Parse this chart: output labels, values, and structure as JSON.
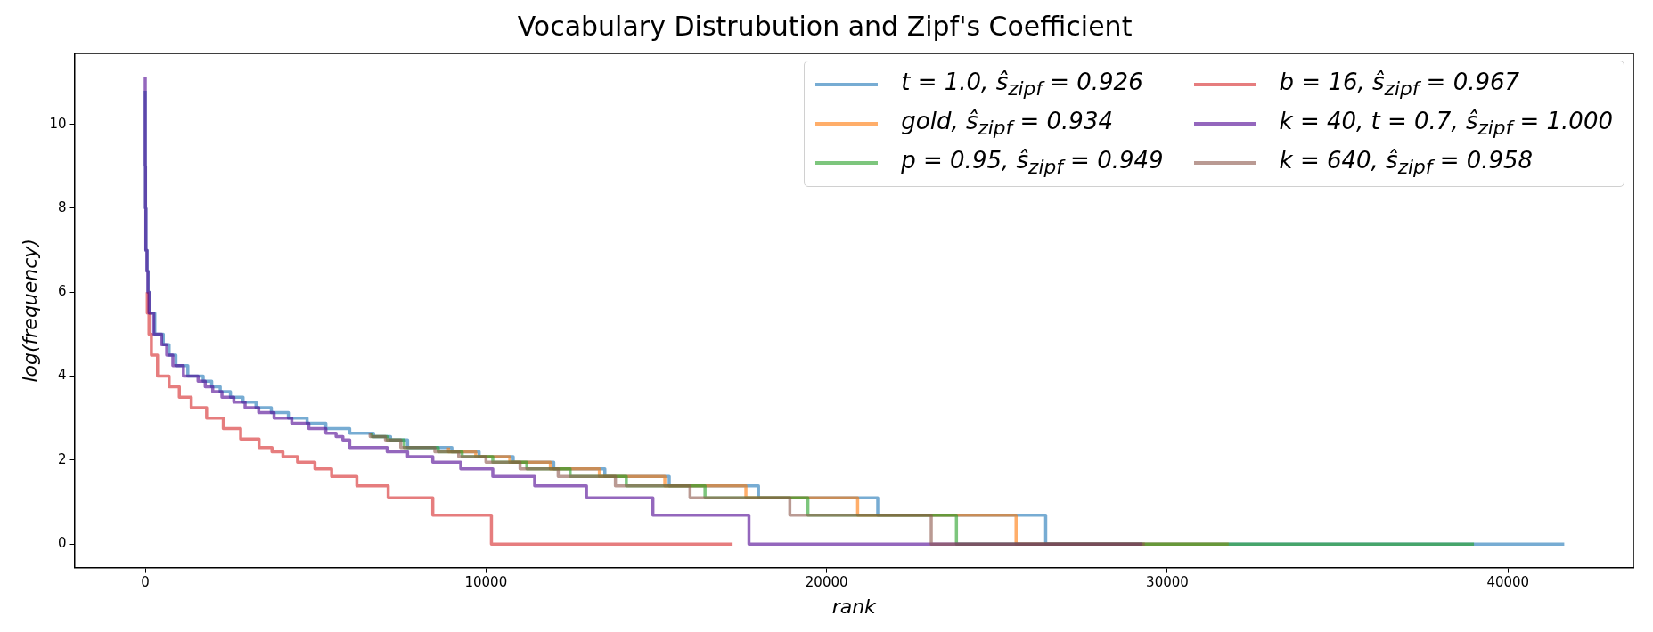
{
  "chart_data": {
    "type": "step",
    "title": "Vocabulary Distrubution and Zipf's Coefficient",
    "xlabel": "rank",
    "ylabel": "log(frequency)",
    "xlim": [
      -2080,
      43680
    ],
    "ylim": [
      -0.56,
      11.69
    ],
    "xticks": [
      0,
      10000,
      20000,
      30000,
      40000
    ],
    "yticks": [
      0,
      2,
      4,
      6,
      8,
      10
    ],
    "grid": false,
    "legend": "top right",
    "marker": "none",
    "line_style": "solid",
    "series": [
      {
        "name": "t = 1.0, ŝ$_{zipf}$ = 0.926",
        "color": "#77acd3",
        "x": [
          0,
          8,
          20,
          55,
          85,
          120,
          280,
          530,
          700,
          900,
          1250,
          1700,
          1950,
          2200,
          2500,
          2870,
          3250,
          3700,
          4200,
          4750,
          5300,
          6000,
          6700,
          7200,
          7700,
          9000,
          9800,
          10800,
          11990,
          13490,
          15380,
          18000,
          21500,
          26430,
          33150,
          41650
        ],
        "values": [
          10.8,
          9,
          8,
          7,
          6.5,
          6,
          5.5,
          5,
          4.75,
          4.5,
          4.25,
          4,
          3.88,
          3.75,
          3.63,
          3.5,
          3.38,
          3.25,
          3.13,
          3,
          2.88,
          2.75,
          2.64,
          2.56,
          2.48,
          2.3,
          2.2,
          2.08,
          1.95,
          1.79,
          1.61,
          1.39,
          1.1,
          0.69,
          0,
          0
        ]
      },
      {
        "name": "gold, ŝ$_{zipf}$ = 0.934",
        "color": "#ffae6a",
        "x": [
          8900,
          9700,
          10700,
          11890,
          13330,
          15250,
          17630,
          20910,
          25560,
          31800
        ],
        "values": [
          2.3,
          2.2,
          2.08,
          1.95,
          1.79,
          1.61,
          1.39,
          1.1,
          0.69,
          0
        ]
      },
      {
        "name": "p = 0.95, ŝ$_{zipf}$ = 0.949",
        "color": "#7dc67d",
        "x": [
          6650,
          7100,
          7600,
          8600,
          9300,
          10200,
          11200,
          12470,
          14120,
          16430,
          19450,
          23810,
          30130,
          39000
        ],
        "values": [
          2.64,
          2.56,
          2.48,
          2.3,
          2.2,
          2.08,
          1.95,
          1.79,
          1.61,
          1.39,
          1.1,
          0.69,
          0,
          0
        ]
      },
      {
        "name": "b = 16, ŝ$_{zipf}$ = 0.967",
        "color": "#e67d7e",
        "x": [
          60,
          110,
          180,
          360,
          700,
          1000,
          1350,
          1800,
          2290,
          2800,
          3340,
          3720,
          4040,
          4470,
          4980,
          5470,
          6210,
          7130,
          8440,
          10160,
          12780,
          17240
        ],
        "values": [
          6,
          5.5,
          5,
          4.5,
          4,
          3.75,
          3.5,
          3.25,
          3,
          2.75,
          2.5,
          2.3,
          2.2,
          2.08,
          1.95,
          1.79,
          1.61,
          1.39,
          1.1,
          0.69,
          0,
          0
        ]
      },
      {
        "name": "k = 40, t = 0.7, ŝ$_{zipf}$ = 1.000",
        "color": "#9467bd",
        "x": [
          0,
          7,
          18,
          50,
          77,
          110,
          250,
          480,
          630,
          810,
          1120,
          1550,
          1760,
          1980,
          2250,
          2600,
          2930,
          3330,
          3780,
          4300,
          4800,
          5300,
          5600,
          5800,
          6000,
          7100,
          7700,
          8440,
          9260,
          10200,
          11430,
          12950,
          14900,
          17720,
          22080,
          29270
        ],
        "values": [
          11.13,
          9,
          8,
          7,
          6.5,
          6,
          5.5,
          5,
          4.75,
          4.5,
          4.25,
          4,
          3.88,
          3.75,
          3.63,
          3.5,
          3.38,
          3.25,
          3.13,
          3,
          2.88,
          2.75,
          2.64,
          2.56,
          2.48,
          2.3,
          2.2,
          2.08,
          1.95,
          1.79,
          1.61,
          1.39,
          1.1,
          0.69,
          0,
          0
        ]
      },
      {
        "name": "k = 640, ŝ$_{zipf}$ = 0.958",
        "color": "#ba9a93",
        "x": [
          6600,
          7050,
          7500,
          8500,
          9200,
          10000,
          11000,
          12120,
          13800,
          15990,
          18920,
          23070,
          29340
        ],
        "values": [
          2.64,
          2.56,
          2.48,
          2.3,
          2.2,
          2.08,
          1.95,
          1.79,
          1.61,
          1.39,
          1.1,
          0.69,
          0
        ]
      }
    ]
  }
}
